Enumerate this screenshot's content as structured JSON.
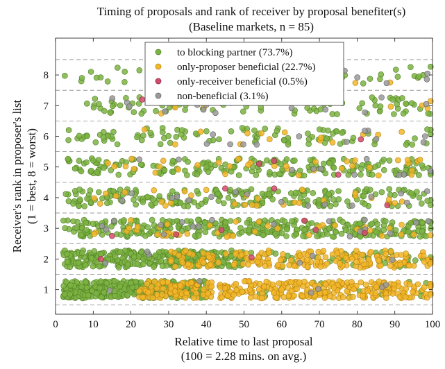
{
  "chart_data": {
    "type": "scatter",
    "title": "Timing of proposals and rank of receiver by proposal benefiter(s)",
    "subtitle": "(Baseline markets, n = 85)",
    "xlabel": "Relative time to last proposal",
    "xlabel_note": "(100 = 2.28 mins. on avg.)",
    "ylabel": "Receiver's rank in proposer's list",
    "ylabel_note": "(1 = best, 8 = worst)",
    "xlim": [
      0,
      100
    ],
    "ylim": [
      0.2,
      9.2
    ],
    "x_ticks": [
      0,
      10,
      20,
      30,
      40,
      50,
      60,
      70,
      80,
      90,
      100
    ],
    "y_ticks": [
      1,
      2,
      3,
      4,
      5,
      6,
      7,
      8
    ],
    "grid": "dashed horizontal lines between ranks",
    "legend_position": "top-center",
    "series": [
      {
        "name": "to blocking partner (73.7%)",
        "color": "#7cb342"
      },
      {
        "name": "only-proposer beneficial (22.7%)",
        "color": "#f2b628"
      },
      {
        "name": "only-receiver beneficial (0.5%)",
        "color": "#d24a6a"
      },
      {
        "name": "non-beneficial (3.1%)",
        "color": "#9a9a9a"
      }
    ],
    "approx_distribution": {
      "rank_1": {
        "to_blocking_partner_x_range": [
          2,
          35
        ],
        "only_proposer_x_range": [
          25,
          100
        ]
      },
      "rank_2": {
        "to_blocking_partner_x_range": [
          2,
          45
        ],
        "only_proposer_x_range": [
          35,
          100
        ]
      },
      "ranks_3_to_8": "mostly to blocking partner, spread across 2–100",
      "only_receiver_points": [
        {
          "x": 12,
          "y": 2.0
        },
        {
          "x": 15,
          "y": 2.75
        },
        {
          "x": 32,
          "y": 2.8
        },
        {
          "x": 44,
          "y": 2.95
        },
        {
          "x": 52,
          "y": 2.05
        },
        {
          "x": 66,
          "y": 3.25
        },
        {
          "x": 69,
          "y": 2.95
        },
        {
          "x": 82,
          "y": 2.85
        },
        {
          "x": 45,
          "y": 4.3
        },
        {
          "x": 58,
          "y": 4.3
        },
        {
          "x": 75,
          "y": 4.75
        },
        {
          "x": 88,
          "y": 3.75
        },
        {
          "x": 54,
          "y": 5.1
        },
        {
          "x": 58,
          "y": 5.2
        },
        {
          "x": 81,
          "y": 5.9
        },
        {
          "x": 23,
          "y": 7.2
        }
      ]
    }
  }
}
